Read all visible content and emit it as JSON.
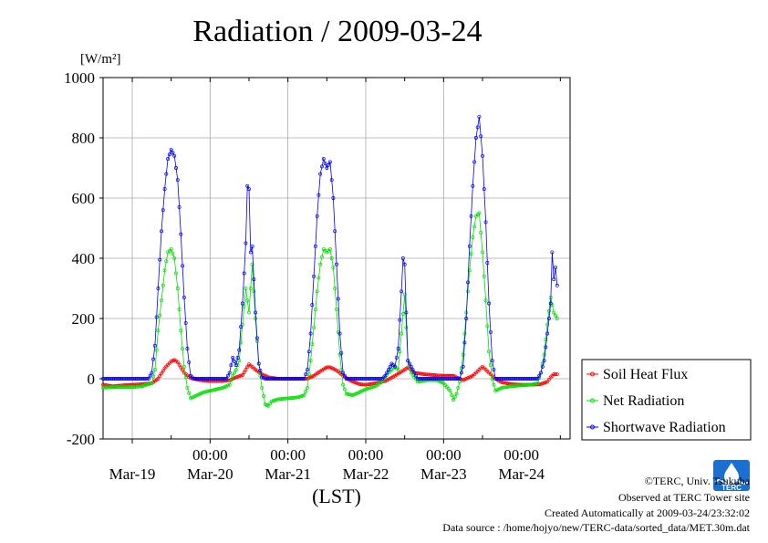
{
  "chart_data": {
    "type": "line",
    "title": "Radiation / 2009-03-24",
    "y_unit": "[W/m²]",
    "xlabel": "(LST)",
    "ylim": [
      -200,
      1000
    ],
    "yticks": [
      "-200",
      "0",
      "200",
      "400",
      "600",
      "800",
      "1000"
    ],
    "x_range_hours": [
      -12,
      12
    ],
    "x_time_ticks": [
      "00:00",
      "00:00",
      "00:00",
      "00:00",
      "00:00"
    ],
    "x_date_ticks": [
      "Mar-19",
      "Mar-20",
      "Mar-21",
      "Mar-22",
      "Mar-23",
      "Mar-24"
    ],
    "grid": true,
    "legend_position": "right",
    "series": [
      {
        "name": "Soil Heat Flux",
        "color": "#ff0000",
        "marker": "circle",
        "points": [
          [
            "2009-03-18 15:00",
            -20
          ],
          [
            "2009-03-18 18:00",
            -25
          ],
          [
            "2009-03-18 21:00",
            -22
          ],
          [
            "2009-03-19 00:00",
            -20
          ],
          [
            "2009-03-19 03:00",
            -18
          ],
          [
            "2009-03-19 06:00",
            -15
          ],
          [
            "2009-03-19 08:00",
            0
          ],
          [
            "2009-03-19 10:00",
            35
          ],
          [
            "2009-03-19 12:00",
            58
          ],
          [
            "2009-03-19 13:00",
            62
          ],
          [
            "2009-03-19 14:00",
            55
          ],
          [
            "2009-03-19 16:00",
            20
          ],
          [
            "2009-03-19 18:00",
            2
          ],
          [
            "2009-03-19 21:00",
            -5
          ],
          [
            "2009-03-20 00:00",
            -8
          ],
          [
            "2009-03-20 03:00",
            -8
          ],
          [
            "2009-03-20 06:00",
            -5
          ],
          [
            "2009-03-20 08:00",
            5
          ],
          [
            "2009-03-20 10:00",
            12
          ],
          [
            "2009-03-20 12:00",
            48
          ],
          [
            "2009-03-20 14:00",
            30
          ],
          [
            "2009-03-20 16:00",
            15
          ],
          [
            "2009-03-20 18:00",
            5
          ],
          [
            "2009-03-20 21:00",
            0
          ],
          [
            "2009-03-21 00:00",
            0
          ],
          [
            "2009-03-21 03:00",
            0
          ],
          [
            "2009-03-21 06:00",
            0
          ],
          [
            "2009-03-21 08:00",
            10
          ],
          [
            "2009-03-21 10:00",
            25
          ],
          [
            "2009-03-21 12:00",
            38
          ],
          [
            "2009-03-21 13:00",
            38
          ],
          [
            "2009-03-21 15:00",
            28
          ],
          [
            "2009-03-21 17:00",
            10
          ],
          [
            "2009-03-21 19:00",
            -5
          ],
          [
            "2009-03-21 22:00",
            -18
          ],
          [
            "2009-03-22 00:00",
            -20
          ],
          [
            "2009-03-22 03:00",
            -15
          ],
          [
            "2009-03-22 06:00",
            -8
          ],
          [
            "2009-03-22 09:00",
            10
          ],
          [
            "2009-03-22 12:00",
            30
          ],
          [
            "2009-03-22 13:00",
            38
          ],
          [
            "2009-03-22 15:00",
            20
          ],
          [
            "2009-03-22 18:00",
            15
          ],
          [
            "2009-03-22 21:00",
            12
          ],
          [
            "2009-03-23 00:00",
            10
          ],
          [
            "2009-03-23 03:00",
            10
          ],
          [
            "2009-03-23 06:00",
            -5
          ],
          [
            "2009-03-23 09:00",
            10
          ],
          [
            "2009-03-23 12:00",
            40
          ],
          [
            "2009-03-23 14:00",
            20
          ],
          [
            "2009-03-23 16:00",
            0
          ],
          [
            "2009-03-23 18:00",
            -12
          ],
          [
            "2009-03-23 21:00",
            -18
          ],
          [
            "2009-03-24 00:00",
            -20
          ],
          [
            "2009-03-24 03:00",
            -20
          ],
          [
            "2009-03-24 06:00",
            -18
          ],
          [
            "2009-03-24 08:00",
            -10
          ],
          [
            "2009-03-24 09:00",
            5
          ],
          [
            "2009-03-24 10:00",
            15
          ],
          [
            "2009-03-24 11:00",
            15
          ]
        ]
      },
      {
        "name": "Net Radiation",
        "color": "#00e000",
        "marker": "circle",
        "points": [
          [
            "2009-03-18 15:00",
            -30
          ],
          [
            "2009-03-18 18:00",
            -28
          ],
          [
            "2009-03-18 21:00",
            -28
          ],
          [
            "2009-03-19 00:00",
            -28
          ],
          [
            "2009-03-19 03:00",
            -25
          ],
          [
            "2009-03-19 06:00",
            -15
          ],
          [
            "2009-03-19 07:00",
            30
          ],
          [
            "2009-03-19 08:00",
            160
          ],
          [
            "2009-03-19 09:00",
            260
          ],
          [
            "2009-03-19 10:00",
            360
          ],
          [
            "2009-03-19 11:00",
            420
          ],
          [
            "2009-03-19 12:00",
            430
          ],
          [
            "2009-03-19 13:00",
            400
          ],
          [
            "2009-03-19 14:00",
            300
          ],
          [
            "2009-03-19 15:00",
            160
          ],
          [
            "2009-03-19 16:00",
            40
          ],
          [
            "2009-03-19 17:00",
            -30
          ],
          [
            "2009-03-19 18:00",
            -65
          ],
          [
            "2009-03-19 20:00",
            -55
          ],
          [
            "2009-03-19 22:00",
            -45
          ],
          [
            "2009-03-20 00:00",
            -40
          ],
          [
            "2009-03-20 02:00",
            -35
          ],
          [
            "2009-03-20 04:00",
            -30
          ],
          [
            "2009-03-20 06:00",
            -20
          ],
          [
            "2009-03-20 07:00",
            10
          ],
          [
            "2009-03-20 08:00",
            30
          ],
          [
            "2009-03-20 09:00",
            60
          ],
          [
            "2009-03-20 10:00",
            180
          ],
          [
            "2009-03-20 11:00",
            300
          ],
          [
            "2009-03-20 12:00",
            220
          ],
          [
            "2009-03-20 13:00",
            380
          ],
          [
            "2009-03-20 14:00",
            200
          ],
          [
            "2009-03-20 15:00",
            50
          ],
          [
            "2009-03-20 16:00",
            -30
          ],
          [
            "2009-03-20 17:00",
            -85
          ],
          [
            "2009-03-20 18:00",
            -90
          ],
          [
            "2009-03-20 19:00",
            -75
          ],
          [
            "2009-03-20 21:00",
            -68
          ],
          [
            "2009-03-21 00:00",
            -65
          ],
          [
            "2009-03-21 03:00",
            -62
          ],
          [
            "2009-03-21 05:00",
            -55
          ],
          [
            "2009-03-21 06:00",
            -30
          ],
          [
            "2009-03-21 07:00",
            60
          ],
          [
            "2009-03-21 08:00",
            170
          ],
          [
            "2009-03-21 09:00",
            290
          ],
          [
            "2009-03-21 10:00",
            380
          ],
          [
            "2009-03-21 11:00",
            430
          ],
          [
            "2009-03-21 12:00",
            420
          ],
          [
            "2009-03-21 13:00",
            430
          ],
          [
            "2009-03-21 14:00",
            370
          ],
          [
            "2009-03-21 15:00",
            230
          ],
          [
            "2009-03-21 16:00",
            80
          ],
          [
            "2009-03-21 17:00",
            -20
          ],
          [
            "2009-03-21 18:00",
            -50
          ],
          [
            "2009-03-21 20:00",
            -55
          ],
          [
            "2009-03-21 22:00",
            -45
          ],
          [
            "2009-03-22 00:00",
            -35
          ],
          [
            "2009-03-22 03:00",
            -25
          ],
          [
            "2009-03-22 05:00",
            -10
          ],
          [
            "2009-03-22 07:00",
            20
          ],
          [
            "2009-03-22 09:00",
            40
          ],
          [
            "2009-03-22 10:00",
            30
          ],
          [
            "2009-03-22 11:00",
            150
          ],
          [
            "2009-03-22 12:00",
            280
          ],
          [
            "2009-03-22 13:00",
            60
          ],
          [
            "2009-03-22 14:00",
            20
          ],
          [
            "2009-03-22 16:00",
            -10
          ],
          [
            "2009-03-22 19:00",
            -5
          ],
          [
            "2009-03-22 22:00",
            -5
          ],
          [
            "2009-03-23 00:00",
            -15
          ],
          [
            "2009-03-23 02:00",
            -40
          ],
          [
            "2009-03-23 03:00",
            -70
          ],
          [
            "2009-03-23 04:00",
            -50
          ],
          [
            "2009-03-23 05:00",
            -10
          ],
          [
            "2009-03-23 06:00",
            80
          ],
          [
            "2009-03-23 07:00",
            220
          ],
          [
            "2009-03-23 08:00",
            360
          ],
          [
            "2009-03-23 09:00",
            470
          ],
          [
            "2009-03-23 10:00",
            540
          ],
          [
            "2009-03-23 11:00",
            550
          ],
          [
            "2009-03-23 12:00",
            420
          ],
          [
            "2009-03-23 13:00",
            260
          ],
          [
            "2009-03-23 14:00",
            90
          ],
          [
            "2009-03-23 15:00",
            0
          ],
          [
            "2009-03-23 16:00",
            -40
          ],
          [
            "2009-03-23 18:00",
            -30
          ],
          [
            "2009-03-23 21:00",
            -25
          ],
          [
            "2009-03-24 00:00",
            -22
          ],
          [
            "2009-03-24 03:00",
            -20
          ],
          [
            "2009-03-24 05:00",
            -15
          ],
          [
            "2009-03-24 06:00",
            20
          ],
          [
            "2009-03-24 07:00",
            80
          ],
          [
            "2009-03-24 08:00",
            180
          ],
          [
            "2009-03-24 09:00",
            270
          ],
          [
            "2009-03-24 10:00",
            220
          ],
          [
            "2009-03-24 11:00",
            200
          ]
        ]
      },
      {
        "name": "Shortwave Radiation",
        "color": "#0000ff",
        "marker": "circle",
        "points": [
          [
            "2009-03-18 15:00",
            0
          ],
          [
            "2009-03-18 21:00",
            0
          ],
          [
            "2009-03-19 03:00",
            0
          ],
          [
            "2009-03-19 05:00",
            0
          ],
          [
            "2009-03-19 06:00",
            20
          ],
          [
            "2009-03-19 07:00",
            110
          ],
          [
            "2009-03-19 08:00",
            300
          ],
          [
            "2009-03-19 09:00",
            490
          ],
          [
            "2009-03-19 10:00",
            630
          ],
          [
            "2009-03-19 11:00",
            730
          ],
          [
            "2009-03-19 12:00",
            760
          ],
          [
            "2009-03-19 13:00",
            740
          ],
          [
            "2009-03-19 14:00",
            660
          ],
          [
            "2009-03-19 15:00",
            480
          ],
          [
            "2009-03-19 16:00",
            270
          ],
          [
            "2009-03-19 17:00",
            100
          ],
          [
            "2009-03-19 18:00",
            10
          ],
          [
            "2009-03-19 19:00",
            0
          ],
          [
            "2009-03-20 00:00",
            0
          ],
          [
            "2009-03-20 05:00",
            0
          ],
          [
            "2009-03-20 06:00",
            20
          ],
          [
            "2009-03-20 07:00",
            70
          ],
          [
            "2009-03-20 08:00",
            45
          ],
          [
            "2009-03-20 09:00",
            95
          ],
          [
            "2009-03-20 10:00",
            250
          ],
          [
            "2009-03-20 11:00",
            450
          ],
          [
            "2009-03-20 11:30",
            640
          ],
          [
            "2009-03-20 12:00",
            630
          ],
          [
            "2009-03-20 12:30",
            420
          ],
          [
            "2009-03-20 13:00",
            440
          ],
          [
            "2009-03-20 14:00",
            220
          ],
          [
            "2009-03-20 15:00",
            50
          ],
          [
            "2009-03-20 16:00",
            5
          ],
          [
            "2009-03-20 17:00",
            0
          ],
          [
            "2009-03-21 00:00",
            0
          ],
          [
            "2009-03-21 05:00",
            0
          ],
          [
            "2009-03-21 06:00",
            30
          ],
          [
            "2009-03-21 07:00",
            150
          ],
          [
            "2009-03-21 08:00",
            340
          ],
          [
            "2009-03-21 09:00",
            540
          ],
          [
            "2009-03-21 10:00",
            680
          ],
          [
            "2009-03-21 11:00",
            730
          ],
          [
            "2009-03-21 12:00",
            700
          ],
          [
            "2009-03-21 13:00",
            720
          ],
          [
            "2009-03-21 14:00",
            600
          ],
          [
            "2009-03-21 15:00",
            380
          ],
          [
            "2009-03-21 16:00",
            150
          ],
          [
            "2009-03-21 17:00",
            20
          ],
          [
            "2009-03-21 18:00",
            0
          ],
          [
            "2009-03-22 00:00",
            0
          ],
          [
            "2009-03-22 05:00",
            0
          ],
          [
            "2009-03-22 06:00",
            10
          ],
          [
            "2009-03-22 07:00",
            30
          ],
          [
            "2009-03-22 08:00",
            50
          ],
          [
            "2009-03-22 09:00",
            40
          ],
          [
            "2009-03-22 10:00",
            100
          ],
          [
            "2009-03-22 11:00",
            290
          ],
          [
            "2009-03-22 11:30",
            400
          ],
          [
            "2009-03-22 12:00",
            380
          ],
          [
            "2009-03-22 13:00",
            60
          ],
          [
            "2009-03-22 14:00",
            40
          ],
          [
            "2009-03-22 15:00",
            20
          ],
          [
            "2009-03-22 16:00",
            0
          ],
          [
            "2009-03-23 00:00",
            0
          ],
          [
            "2009-03-23 05:00",
            0
          ],
          [
            "2009-03-23 06:00",
            40
          ],
          [
            "2009-03-23 07:00",
            200
          ],
          [
            "2009-03-23 08:00",
            440
          ],
          [
            "2009-03-23 09:00",
            640
          ],
          [
            "2009-03-23 10:00",
            800
          ],
          [
            "2009-03-23 11:00",
            870
          ],
          [
            "2009-03-23 12:00",
            740
          ],
          [
            "2009-03-23 13:00",
            520
          ],
          [
            "2009-03-23 14:00",
            250
          ],
          [
            "2009-03-23 15:00",
            60
          ],
          [
            "2009-03-23 16:00",
            0
          ],
          [
            "2009-03-24 00:00",
            0
          ],
          [
            "2009-03-24 05:00",
            0
          ],
          [
            "2009-03-24 06:00",
            20
          ],
          [
            "2009-03-24 07:00",
            60
          ],
          [
            "2009-03-24 08:00",
            150
          ],
          [
            "2009-03-24 09:00",
            250
          ],
          [
            "2009-03-24 09:30",
            420
          ],
          [
            "2009-03-24 10:00",
            330
          ],
          [
            "2009-03-24 10:30",
            370
          ],
          [
            "2009-03-24 11:00",
            310
          ]
        ]
      }
    ]
  },
  "footer": {
    "copyright": "©TERC, Univ. Tsukuba",
    "observed": "Observed at TERC Tower site",
    "created": "Created Automatically at 2009-03-24/23:32:02",
    "source": "Data source : /home/hojyo/new/TERC-data/sorted_data/MET.30m.dat",
    "logo_text": "TERC"
  }
}
